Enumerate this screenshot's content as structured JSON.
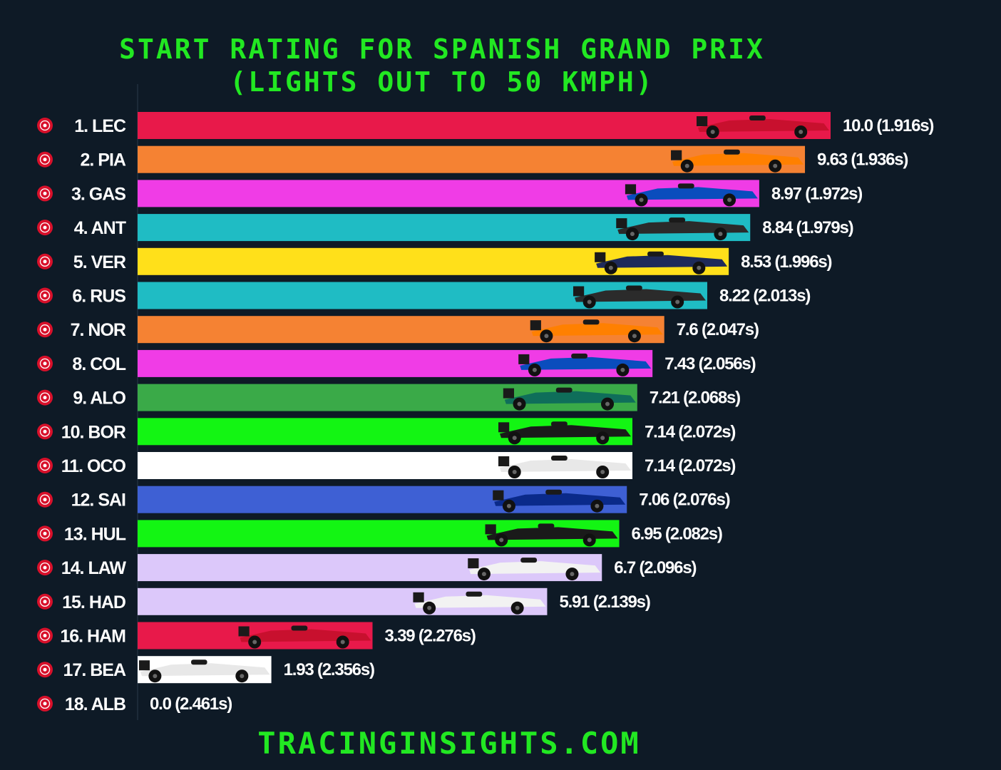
{
  "title_line1": "START RATING FOR SPANISH GRAND PRIX",
  "title_line2": "(LIGHTS OUT TO 50 KMPH)",
  "footer": "TRACINGINSIGHTS.COM",
  "chart_data": {
    "type": "bar",
    "orientation": "horizontal",
    "title": "START RATING FOR SPANISH GRAND PRIX (LIGHTS OUT TO 50 KMPH)",
    "xlim": [
      0,
      10
    ],
    "grid": false,
    "categories": [
      "1. LEC",
      "2. PIA",
      "3. GAS",
      "4. ANT",
      "5. VER",
      "6. RUS",
      "7. NOR",
      "8. COL",
      "9. ALO",
      "10. BOR",
      "11. OCO",
      "12. SAI",
      "13. HUL",
      "14. LAW",
      "15. HAD",
      "16. HAM",
      "17. BEA",
      "18. ALB"
    ],
    "values": [
      10.0,
      9.63,
      8.97,
      8.84,
      8.53,
      8.22,
      7.6,
      7.43,
      7.21,
      7.14,
      7.14,
      7.06,
      6.95,
      6.7,
      5.91,
      3.39,
      1.93,
      0.0
    ],
    "times": [
      "1.916s",
      "1.936s",
      "1.972s",
      "1.979s",
      "1.996s",
      "2.013s",
      "2.047s",
      "2.056s",
      "2.068s",
      "2.072s",
      "2.072s",
      "2.076s",
      "2.082s",
      "2.096s",
      "2.139s",
      "2.276s",
      "2.356s",
      "2.461s"
    ],
    "value_labels": [
      "10.0 (1.916s)",
      "9.63 (1.936s)",
      "8.97 (1.972s)",
      "8.84 (1.979s)",
      "8.53 (1.996s)",
      "8.22 (2.013s)",
      "7.6 (2.047s)",
      "7.43 (2.056s)",
      "7.21 (2.068s)",
      "7.14 (2.072s)",
      "7.14 (2.072s)",
      "7.06 (2.076s)",
      "6.95 (2.082s)",
      "6.7 (2.096s)",
      "5.91 (2.139s)",
      "3.39 (2.276s)",
      "1.93 (2.356s)",
      "0.0 (2.461s)"
    ],
    "colors": [
      "#e8194a",
      "#f58233",
      "#f03ce6",
      "#1fbcc4",
      "#ffe01a",
      "#1fbcc4",
      "#f58233",
      "#f03ce6",
      "#3aaa48",
      "#13f513",
      "#ffffff",
      "#3e60d4",
      "#13f513",
      "#dcc8fa",
      "#dcc8fa",
      "#e8194a",
      "#ffffff",
      "#1464d2"
    ],
    "car_colors": [
      "#c8102e",
      "#ff8000",
      "#0a4dbd",
      "#2b2b2b",
      "#1e2a5a",
      "#2b2b2b",
      "#ff8000",
      "#0a4dbd",
      "#0f6e5a",
      "#1a1a1a",
      "#e8e8e8",
      "#0a2a8a",
      "#1a1a1a",
      "#f2f2f2",
      "#f2f2f2",
      "#c8102e",
      "#e8e8e8",
      "#0a2a8a"
    ],
    "tyre_icon": "tyre-icon",
    "car_icon": "f1-car-icon"
  }
}
